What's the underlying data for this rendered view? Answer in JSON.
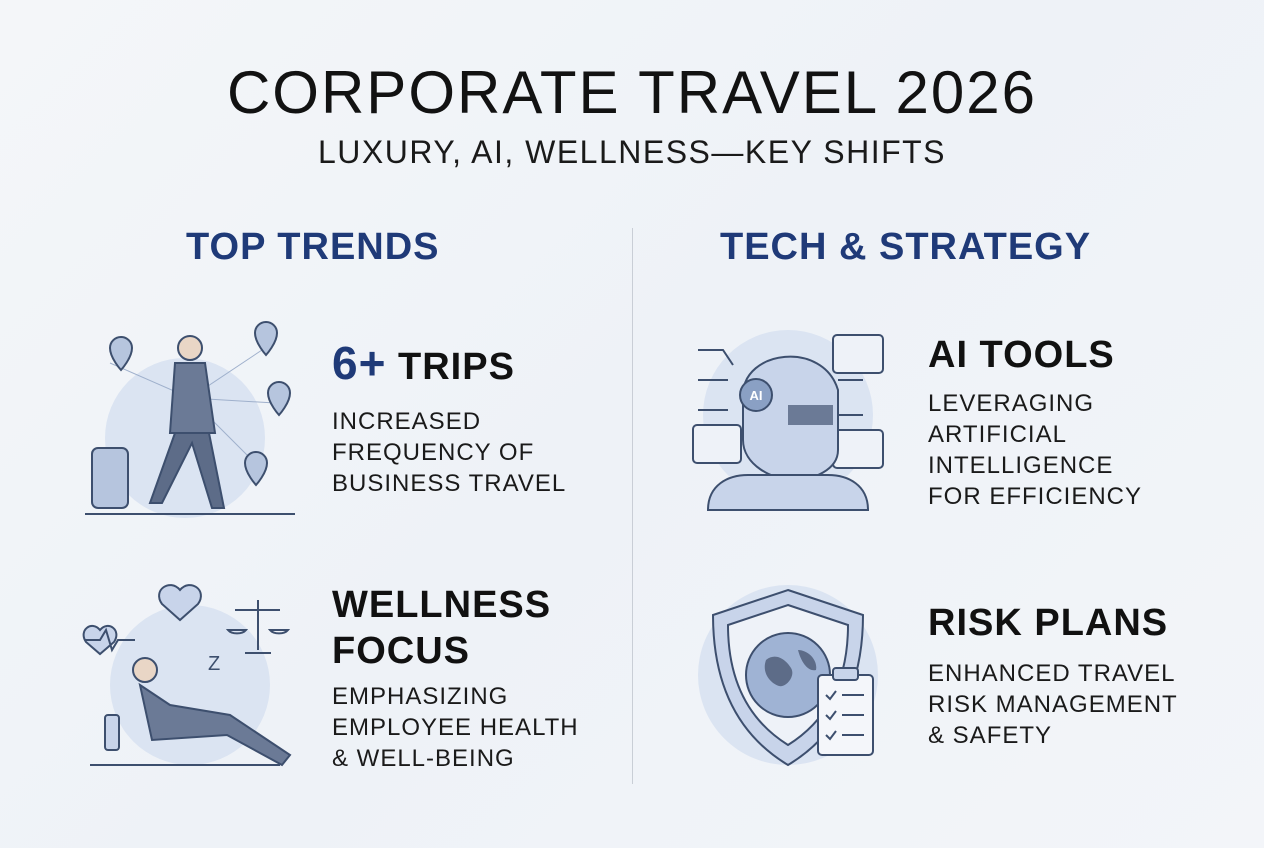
{
  "title": "CORPORATE TRAVEL 2026",
  "subtitle": "LUXURY, AI, WELLNESS—KEY SHIFTS",
  "sections": [
    {
      "heading": "TOP TRENDS",
      "items": [
        {
          "icon": "business-traveler-icon",
          "highlight": "6+",
          "title": "TRIPS",
          "description": [
            "INCREASED",
            "FREQUENCY OF",
            "BUSINESS TRAVEL"
          ]
        },
        {
          "icon": "wellness-relaxing-icon",
          "title_lines": [
            "WELLNESS",
            "FOCUS"
          ],
          "description": [
            "EMPHASIZING",
            "EMPLOYEE HEALTH",
            "& WELL-BEING"
          ]
        }
      ]
    },
    {
      "heading": "TECH & STRATEGY",
      "items": [
        {
          "icon": "ai-robot-icon",
          "title": "AI TOOLS",
          "description": [
            "LEVERAGING",
            "ARTIFICIAL",
            "INTELLIGENCE",
            "FOR EFFICIENCY"
          ]
        },
        {
          "icon": "shield-globe-checklist-icon",
          "title": "RISK PLANS",
          "description": [
            "ENHANCED TRAVEL",
            "RISK MANAGEMENT",
            "& SAFETY"
          ]
        }
      ]
    }
  ],
  "colors": {
    "accent": "#1f3a78",
    "icon_fill": "#c8d4ea",
    "icon_stroke": "#3d4f6e"
  },
  "robot_badge": "AI"
}
